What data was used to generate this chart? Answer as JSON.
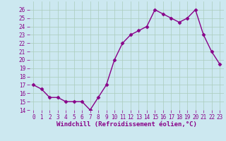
{
  "x": [
    0,
    1,
    2,
    3,
    4,
    5,
    6,
    7,
    8,
    9,
    10,
    11,
    12,
    13,
    14,
    15,
    16,
    17,
    18,
    19,
    20,
    21,
    22,
    23
  ],
  "y": [
    17,
    16.5,
    15.5,
    15.5,
    15,
    15,
    15,
    14,
    15.5,
    17,
    20,
    22,
    23,
    23.5,
    24,
    26,
    25.5,
    25,
    24.5,
    25,
    26,
    23,
    21,
    19.5
  ],
  "line_color": "#880088",
  "marker": "D",
  "marker_size": 2.5,
  "xlabel": "Windchill (Refroidissement éolien,°C)",
  "ylim": [
    14,
    27
  ],
  "yticks": [
    14,
    15,
    16,
    17,
    18,
    19,
    20,
    21,
    22,
    23,
    24,
    25,
    26
  ],
  "xticks": [
    0,
    1,
    2,
    3,
    4,
    5,
    6,
    7,
    8,
    9,
    10,
    11,
    12,
    13,
    14,
    15,
    16,
    17,
    18,
    19,
    20,
    21,
    22,
    23
  ],
  "xlim": [
    -0.5,
    23.5
  ],
  "bg_color": "#cce8f0",
  "grid_color": "#aaccbb",
  "tick_fontsize": 5.5,
  "xlabel_fontsize": 6.5,
  "line_width": 1.0
}
